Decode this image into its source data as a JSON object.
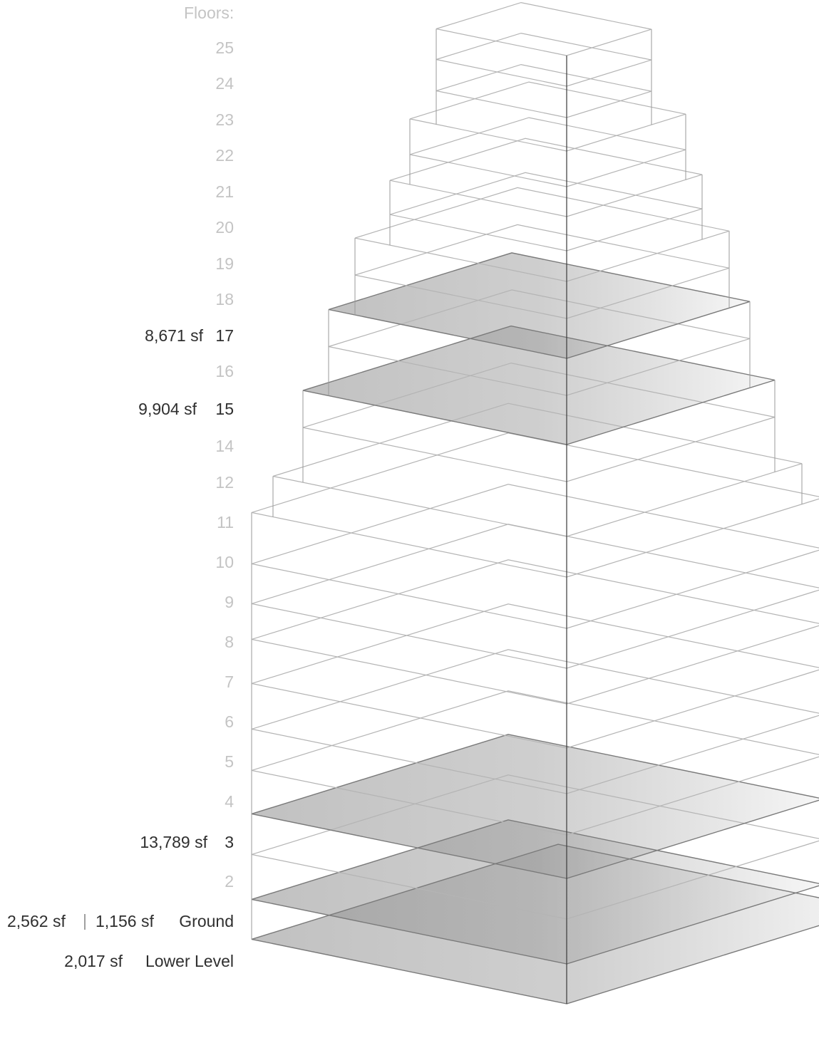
{
  "header": "Floors:",
  "floors": [
    {
      "label": "25",
      "highlight": false
    },
    {
      "label": "24",
      "highlight": false
    },
    {
      "label": "23",
      "highlight": false
    },
    {
      "label": "22",
      "highlight": false
    },
    {
      "label": "21",
      "highlight": false
    },
    {
      "label": "20",
      "highlight": false
    },
    {
      "label": "19",
      "highlight": false
    },
    {
      "label": "18",
      "highlight": false
    },
    {
      "label": "17",
      "highlight": true,
      "area": "8,671 sf"
    },
    {
      "label": "16",
      "highlight": false
    },
    {
      "label": "15",
      "highlight": true,
      "area": "9,904 sf"
    },
    {
      "label": "14",
      "highlight": false
    },
    {
      "label": "12",
      "highlight": false
    },
    {
      "label": "11",
      "highlight": false
    },
    {
      "label": "10",
      "highlight": false
    },
    {
      "label": "9",
      "highlight": false
    },
    {
      "label": "8",
      "highlight": false
    },
    {
      "label": "7",
      "highlight": false
    },
    {
      "label": "6",
      "highlight": false
    },
    {
      "label": "5",
      "highlight": false
    },
    {
      "label": "4",
      "highlight": false
    },
    {
      "label": "3",
      "highlight": true,
      "area": "13,789 sf"
    },
    {
      "label": "2",
      "highlight": false
    },
    {
      "label": "Ground",
      "highlight": true,
      "area_a": "2,562 sf",
      "separator": "|",
      "area_b": "1,156 sf"
    },
    {
      "label": "Lower Level",
      "highlight": true,
      "area": "2,017 sf"
    }
  ],
  "colors": {
    "faint_text": "#c4c4c4",
    "dark_text": "#2f2f2f",
    "outline": "#9a9a9a",
    "edge": "#3a3a3a",
    "fill_dark": "#8e8e8e",
    "fill_light": "#efefef"
  }
}
